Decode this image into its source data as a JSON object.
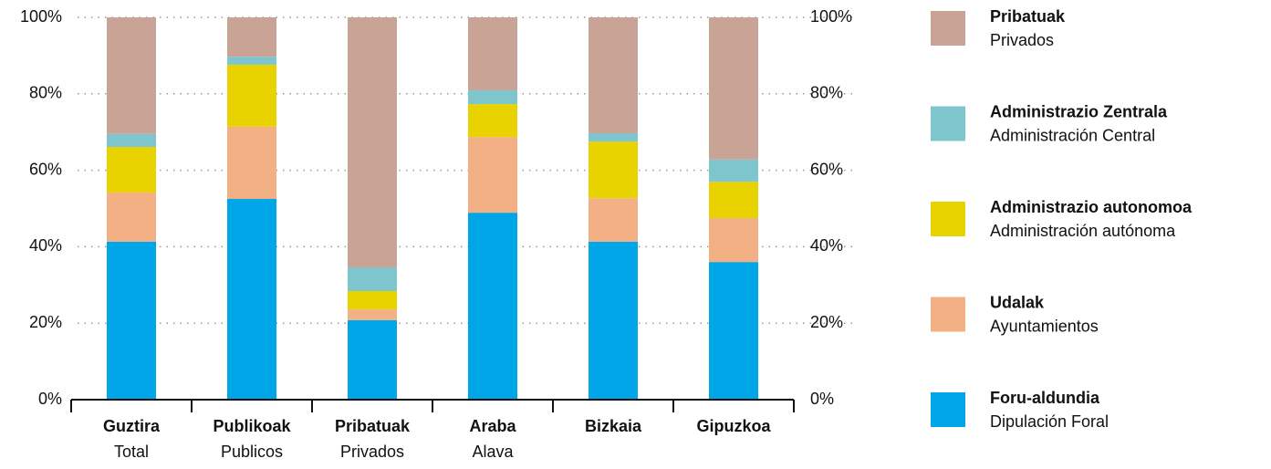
{
  "chart_data": {
    "type": "stacked_bar",
    "categories": [
      "Guztira",
      "Publikoak",
      "Pribatuak",
      "Araba",
      "Bizkaia",
      "Gipuzkoa"
    ],
    "category_subtitles": [
      "Total",
      "Publicos",
      "Privados",
      "Alava",
      null,
      null
    ],
    "series": [
      {
        "name": "Foru-aldundia",
        "translation": "Dipulación Foral",
        "color": "#00a6e8",
        "values": [
          41.3,
          52.5,
          20.8,
          48.9,
          41.3,
          36.0
        ]
      },
      {
        "name": "Udalak",
        "translation": "Ayuntamientos",
        "color": "#f2b084",
        "values": [
          12.9,
          18.9,
          2.8,
          19.8,
          11.4,
          11.5
        ]
      },
      {
        "name": "Administrazio autonomoa",
        "translation": "Administración autónoma",
        "color": "#e8d200",
        "values": [
          11.9,
          16.2,
          4.8,
          8.6,
          14.8,
          9.5
        ]
      },
      {
        "name": "Administrazio Zentrala",
        "translation": "Administración Central",
        "color": "#7fc5ce",
        "values": [
          3.4,
          2.1,
          6.2,
          3.6,
          2.2,
          5.8
        ]
      },
      {
        "name": "Pribatuak",
        "translation": "Privados",
        "color": "#c9a496",
        "values": [
          30.5,
          10.3,
          65.4,
          19.1,
          30.3,
          37.2
        ]
      }
    ],
    "ylim": [
      0,
      100
    ],
    "yticks": [
      {
        "value": 0,
        "label": "0%"
      },
      {
        "value": 20,
        "label": "20%"
      },
      {
        "value": 40,
        "label": "40%"
      },
      {
        "value": 60,
        "label": "60%"
      },
      {
        "value": 80,
        "label": "80%"
      },
      {
        "value": 100,
        "label": "100%"
      }
    ],
    "grid": true,
    "legend": "right"
  }
}
